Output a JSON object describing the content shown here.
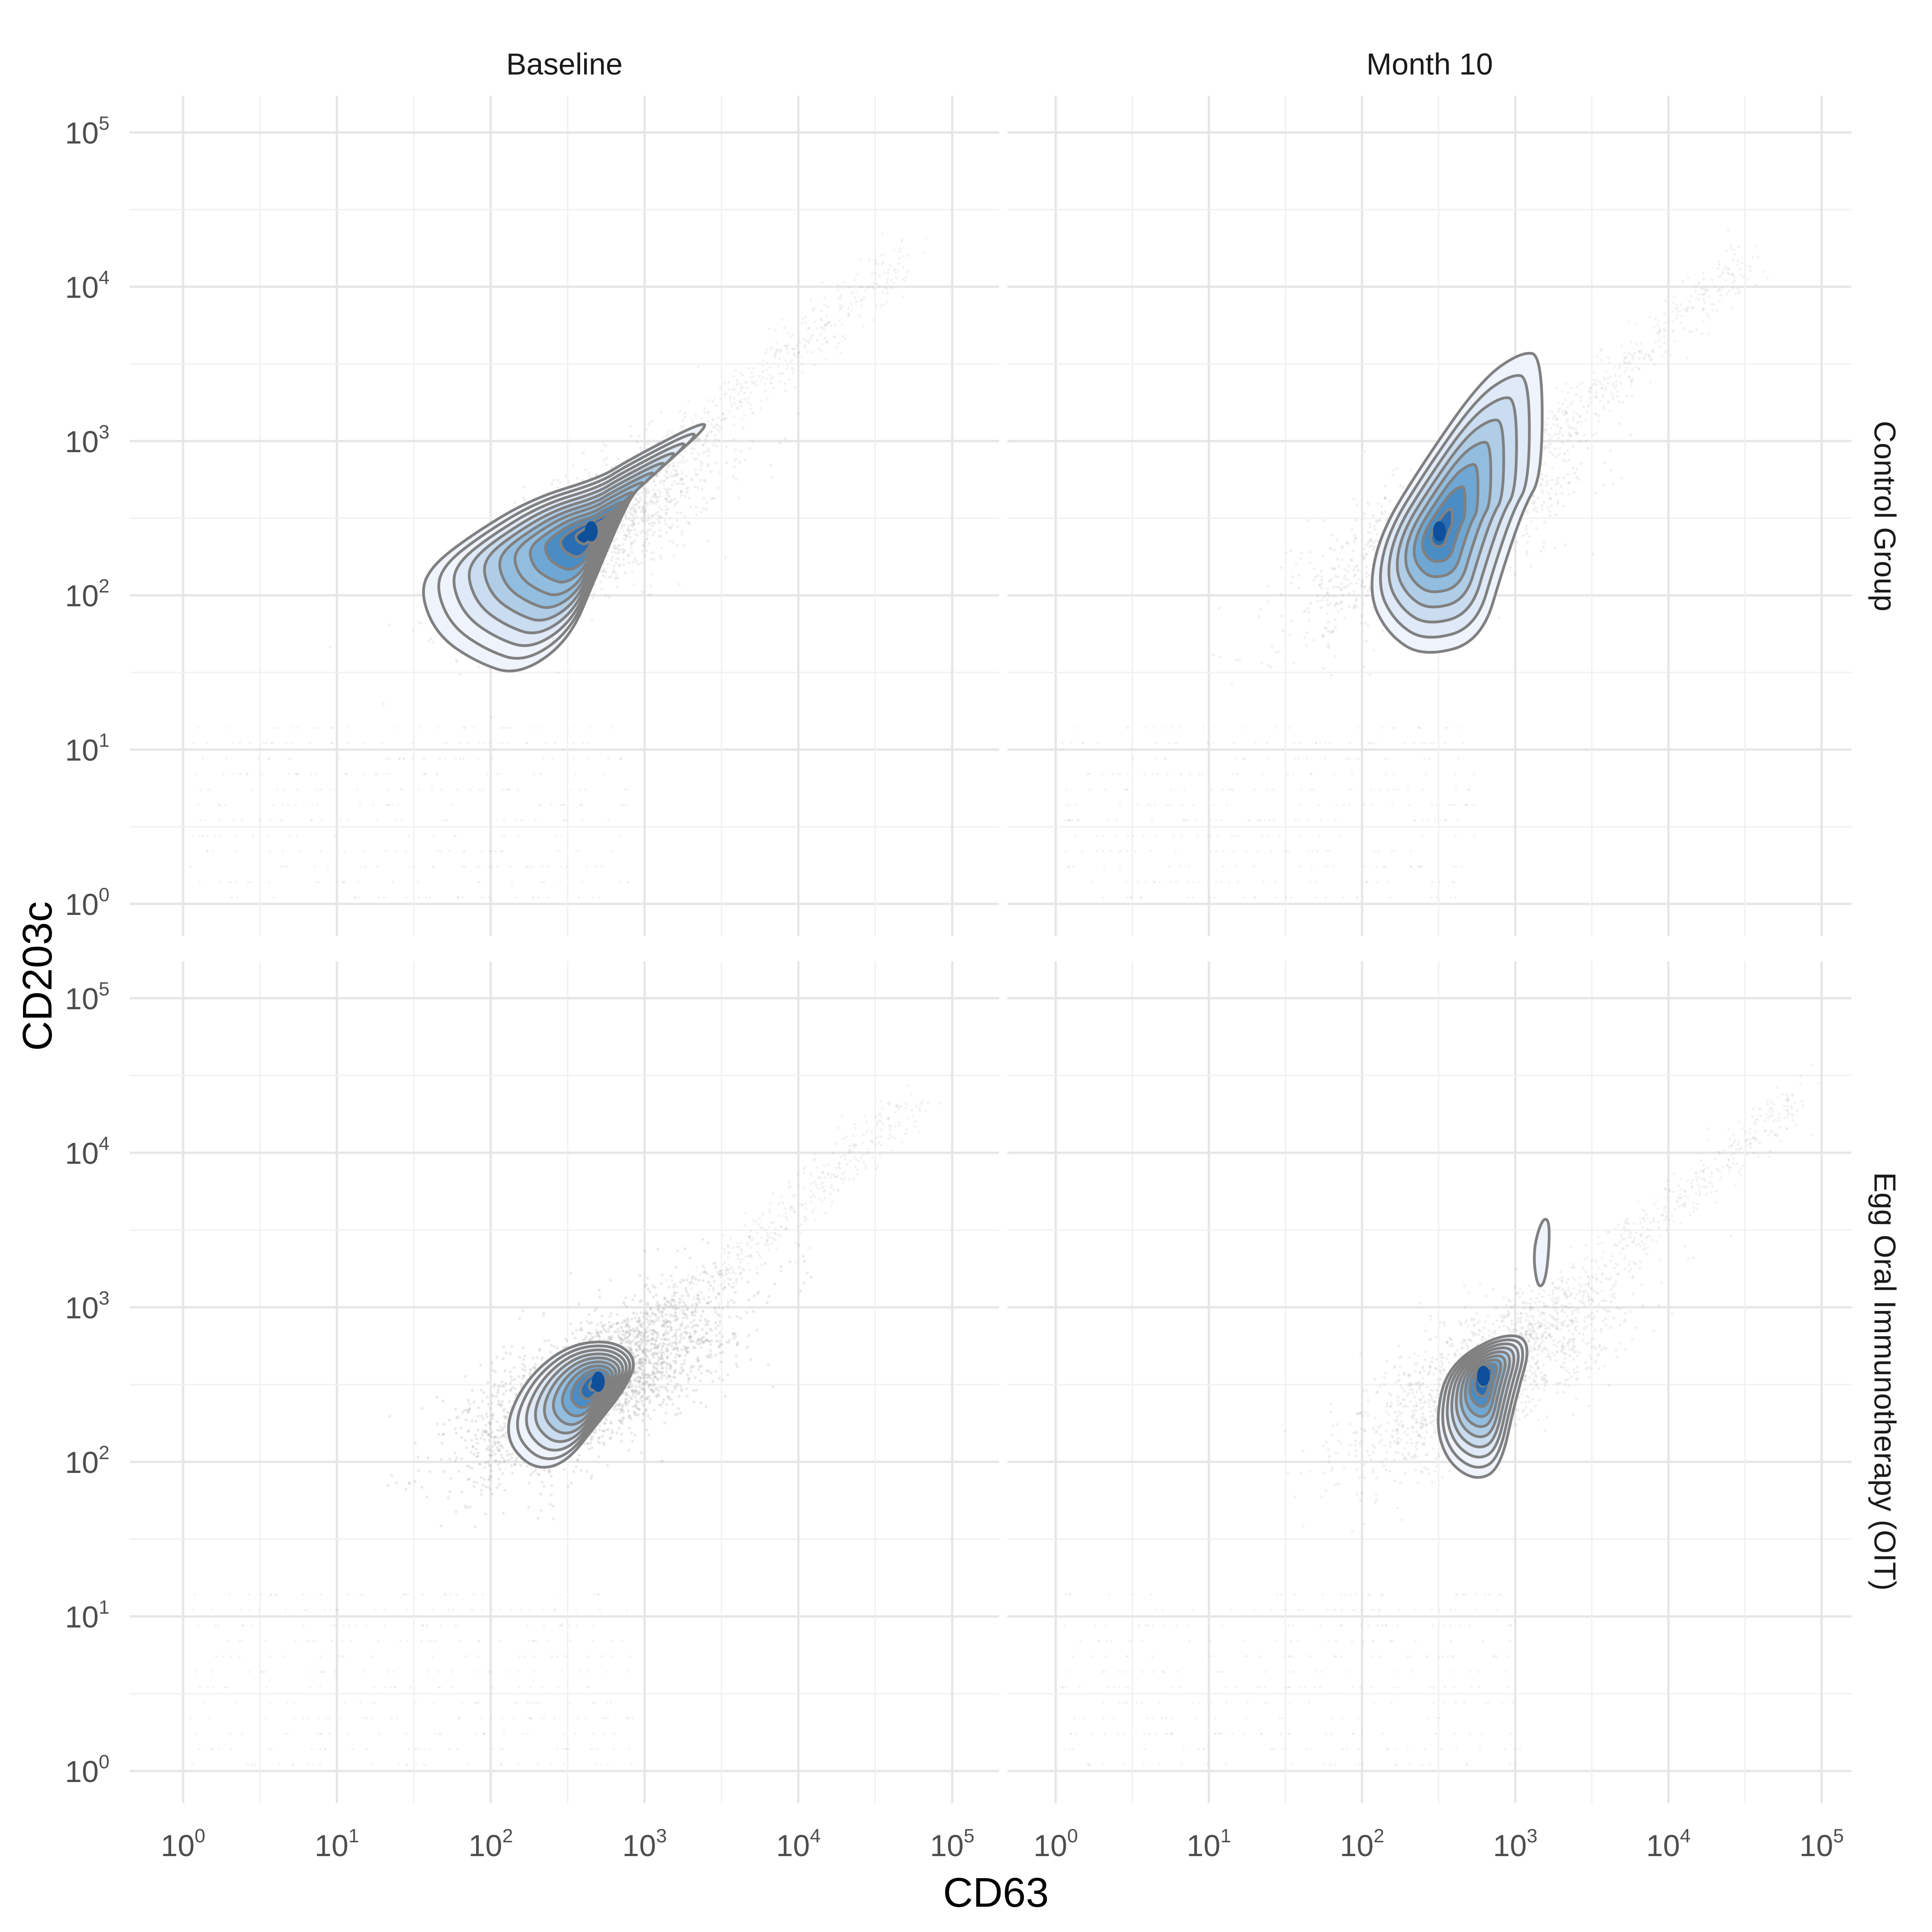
{
  "chart_data": {
    "type": "contour-scatter",
    "xlabel": "CD63",
    "ylabel": "CD203c",
    "x_scale": "log10",
    "y_scale": "log10",
    "xlim": [
      0.75,
      150000
    ],
    "ylim": [
      0.75,
      200000
    ],
    "x_ticks": [
      1,
      10,
      100,
      1000,
      10000,
      100000
    ],
    "y_ticks": [
      1,
      10,
      100,
      1000,
      10000,
      100000
    ],
    "tick_base": "10",
    "tick_exponents": [
      "0",
      "1",
      "2",
      "3",
      "4",
      "5"
    ],
    "grid": true,
    "columns": [
      "Baseline",
      "Month 10"
    ],
    "rows": [
      "Control Group",
      "Egg Oral Immunotherapy (OIT)"
    ],
    "colors": {
      "points": "#9e9e9e",
      "contour_line": "#808080",
      "fill_levels": [
        "#eef3fc",
        "#dfe9f7",
        "#cadcef",
        "#b0cde7",
        "#92bddf",
        "#6ea7d3",
        "#4a8cc4",
        "#2a6db2",
        "#0d4f9a"
      ]
    },
    "panels": [
      {
        "column": "Baseline",
        "row": "Control Group",
        "peak_cd63": 450,
        "peak_cd203c": 260,
        "contour_levels": 11,
        "outer_contour": [
          [
            35,
            100
          ],
          [
            40,
            150
          ],
          [
            70,
            235
          ],
          [
            180,
            420
          ],
          [
            520,
            580
          ],
          [
            780,
            750
          ],
          [
            2600,
            1400
          ],
          [
            2300,
            1100
          ],
          [
            900,
            520
          ],
          [
            680,
            300
          ],
          [
            480,
            130
          ],
          [
            320,
            50
          ],
          [
            150,
            30
          ],
          [
            80,
            37
          ],
          [
            45,
            55
          ]
        ]
      },
      {
        "column": "Month 10",
        "row": "Control Group",
        "peak_cd63": 320,
        "peak_cd203c": 260,
        "contour_levels": 8,
        "outer_contour": [
          [
            110,
            100
          ],
          [
            130,
            250
          ],
          [
            250,
            720
          ],
          [
            600,
            2500
          ],
          [
            1100,
            3800
          ],
          [
            1500,
            3600
          ],
          [
            1500,
            600
          ],
          [
            1150,
            380
          ],
          [
            850,
            160
          ],
          [
            600,
            50
          ],
          [
            250,
            40
          ],
          [
            150,
            55
          ]
        ]
      },
      {
        "column": "Baseline",
        "row": "Egg Oral Immunotherapy (OIT)",
        "peak_cd63": 500,
        "peak_cd203c": 330,
        "contour_levels": 10,
        "outer_contour": [
          [
            120,
            150
          ],
          [
            160,
            320
          ],
          [
            300,
            560
          ],
          [
            600,
            620
          ],
          [
            900,
            470
          ],
          [
            750,
            300
          ],
          [
            500,
            180
          ],
          [
            300,
            95
          ],
          [
            180,
            90
          ]
        ]
      },
      {
        "column": "Month 10",
        "row": "Egg Oral Immunotherapy (OIT)",
        "peak_cd63": 620,
        "peak_cd203c": 360,
        "contour_levels": 10,
        "outer_contour": [
          [
            300,
            180
          ],
          [
            360,
            420
          ],
          [
            800,
            680
          ],
          [
            1300,
            620
          ],
          [
            1000,
            250
          ],
          [
            800,
            90
          ],
          [
            550,
            75
          ],
          [
            360,
            100
          ]
        ],
        "secondary_contour": [
          [
            1300,
            2300
          ],
          [
            1500,
            3800
          ],
          [
            1700,
            3600
          ],
          [
            1600,
            1500
          ],
          [
            1400,
            1300
          ]
        ]
      }
    ]
  }
}
